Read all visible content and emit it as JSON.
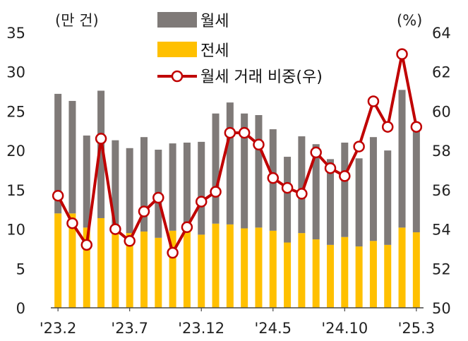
{
  "chart_data": {
    "type": "bar+line",
    "categories": [
      "'23.2",
      "'23.3",
      "'23.4",
      "'23.5",
      "'23.6",
      "'23.7",
      "'23.8",
      "'23.9",
      "'23.10",
      "'23.11",
      "'23.12",
      "'24.1",
      "'24.2",
      "'24.3",
      "'24.4",
      "'24.5",
      "'24.6",
      "'24.7",
      "'24.8",
      "'24.9",
      "'24.10",
      "'24.11",
      "'24.12",
      "'25.1",
      "'25.2",
      "'25.3"
    ],
    "x_tick_labels": [
      "'23.2",
      "'23.7",
      "'23.12",
      "'24.5",
      "'24.10",
      "'25.3"
    ],
    "left_axis": {
      "unit_label": "(만 건)",
      "min": 0,
      "max": 35,
      "ticks": [
        0,
        5,
        10,
        15,
        20,
        25,
        30,
        35
      ]
    },
    "right_axis": {
      "unit_label": "(%)",
      "min": 50,
      "max": 64,
      "ticks": [
        50,
        52,
        54,
        56,
        58,
        60,
        62,
        64
      ]
    },
    "series": [
      {
        "name": "월세",
        "type": "stacked-bar",
        "axis": "left",
        "color": "#7f7a78",
        "values": [
          15.2,
          14.3,
          11.7,
          16.2,
          11.8,
          10.8,
          12.0,
          11.2,
          11.1,
          11.2,
          11.8,
          14.0,
          15.5,
          14.6,
          14.3,
          12.9,
          10.9,
          12.3,
          12.1,
          10.9,
          12.0,
          11.2,
          13.2,
          12.0,
          17.5,
          13.6
        ]
      },
      {
        "name": "전세",
        "type": "stacked-bar",
        "axis": "left",
        "color": "#ffc000",
        "values": [
          12.0,
          12.0,
          10.2,
          11.4,
          9.5,
          9.5,
          9.7,
          8.9,
          9.8,
          9.8,
          9.3,
          10.7,
          10.6,
          10.1,
          10.2,
          9.8,
          8.3,
          9.5,
          8.7,
          8.0,
          9.0,
          7.8,
          8.5,
          8.0,
          10.2,
          9.6
        ]
      },
      {
        "name": "월세 거래 비중(우)",
        "type": "line",
        "axis": "right",
        "color": "#c00000",
        "values": [
          55.7,
          54.3,
          53.2,
          58.6,
          54.0,
          53.4,
          54.9,
          55.6,
          52.8,
          54.1,
          55.4,
          55.9,
          58.9,
          58.9,
          58.3,
          56.6,
          56.1,
          55.8,
          57.9,
          57.1,
          56.7,
          58.2,
          60.5,
          59.2,
          62.9,
          59.2
        ]
      }
    ]
  }
}
